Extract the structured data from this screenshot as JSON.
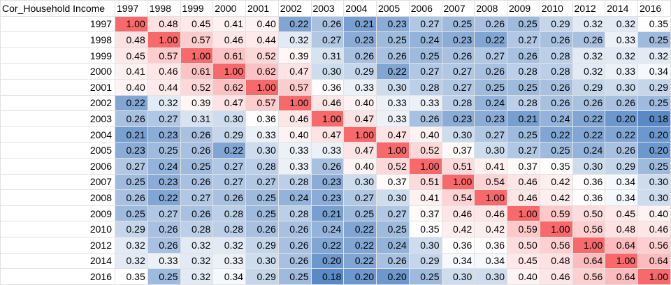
{
  "chart_data": {
    "type": "heatmap",
    "corner_label": "Cor_Household Income",
    "categories": [
      "1997",
      "1998",
      "1999",
      "2000",
      "2001",
      "2002",
      "2003",
      "2004",
      "2005",
      "2006",
      "2007",
      "2008",
      "2009",
      "2010",
      "2012",
      "2014",
      "2016"
    ],
    "values": [
      [
        "1.00",
        "0.48",
        "0.45",
        "0.41",
        "0.40",
        "0.22",
        "0.26",
        "0.21",
        "0.23",
        "0.27",
        "0.25",
        "0.26",
        "0.25",
        "0.29",
        "0.32",
        "0.32",
        "0.35"
      ],
      [
        "0.48",
        "1.00",
        "0.57",
        "0.46",
        "0.44",
        "0.32",
        "0.27",
        "0.23",
        "0.25",
        "0.24",
        "0.23",
        "0.22",
        "0.27",
        "0.26",
        "0.26",
        "0.33",
        "0.25"
      ],
      [
        "0.45",
        "0.57",
        "1.00",
        "0.61",
        "0.52",
        "0.39",
        "0.31",
        "0.26",
        "0.26",
        "0.25",
        "0.26",
        "0.27",
        "0.26",
        "0.28",
        "0.32",
        "0.32",
        "0.32"
      ],
      [
        "0.41",
        "0.46",
        "0.61",
        "1.00",
        "0.62",
        "0.47",
        "0.30",
        "0.29",
        "0.22",
        "0.27",
        "0.27",
        "0.26",
        "0.28",
        "0.28",
        "0.32",
        "0.33",
        "0.34"
      ],
      [
        "0.40",
        "0.44",
        "0.52",
        "0.62",
        "1.00",
        "0.57",
        "0.36",
        "0.33",
        "0.30",
        "0.28",
        "0.27",
        "0.25",
        "0.25",
        "0.26",
        "0.29",
        "0.30",
        "0.29"
      ],
      [
        "0.22",
        "0.32",
        "0.39",
        "0.47",
        "0.57",
        "1.00",
        "0.46",
        "0.40",
        "0.33",
        "0.33",
        "0.28",
        "0.24",
        "0.28",
        "0.26",
        "0.26",
        "0.26",
        "0.25"
      ],
      [
        "0.26",
        "0.27",
        "0.31",
        "0.30",
        "0.36",
        "0.46",
        "1.00",
        "0.47",
        "0.33",
        "0.26",
        "0.23",
        "0.23",
        "0.21",
        "0.24",
        "0.22",
        "0.20",
        "0.18"
      ],
      [
        "0.21",
        "0.23",
        "0.26",
        "0.29",
        "0.33",
        "0.40",
        "0.47",
        "1.00",
        "0.47",
        "0.40",
        "0.30",
        "0.27",
        "0.25",
        "0.22",
        "0.22",
        "0.22",
        "0.20"
      ],
      [
        "0.23",
        "0.25",
        "0.26",
        "0.22",
        "0.30",
        "0.33",
        "0.33",
        "0.47",
        "1.00",
        "0.52",
        "0.37",
        "0.30",
        "0.27",
        "0.25",
        "0.24",
        "0.26",
        "0.20"
      ],
      [
        "0.27",
        "0.24",
        "0.25",
        "0.27",
        "0.28",
        "0.33",
        "0.26",
        "0.40",
        "0.52",
        "1.00",
        "0.51",
        "0.41",
        "0.37",
        "0.35",
        "0.30",
        "0.29",
        "0.25"
      ],
      [
        "0.25",
        "0.23",
        "0.26",
        "0.27",
        "0.27",
        "0.28",
        "0.23",
        "0.30",
        "0.37",
        "0.51",
        "1.00",
        "0.54",
        "0.46",
        "0.42",
        "0.36",
        "0.34",
        "0.30"
      ],
      [
        "0.26",
        "0.22",
        "0.27",
        "0.26",
        "0.25",
        "0.24",
        "0.23",
        "0.27",
        "0.30",
        "0.41",
        "0.54",
        "1.00",
        "0.46",
        "0.42",
        "0.36",
        "0.34",
        "0.30"
      ],
      [
        "0.25",
        "0.27",
        "0.26",
        "0.28",
        "0.25",
        "0.28",
        "0.21",
        "0.25",
        "0.27",
        "0.37",
        "0.46",
        "0.46",
        "1.00",
        "0.59",
        "0.50",
        "0.45",
        "0.40"
      ],
      [
        "0.29",
        "0.26",
        "0.28",
        "0.28",
        "0.26",
        "0.26",
        "0.24",
        "0.22",
        "0.25",
        "0.35",
        "0.42",
        "0.42",
        "0.59",
        "1.00",
        "0.56",
        "0.48",
        "0.46"
      ],
      [
        "0.32",
        "0.26",
        "0.32",
        "0.32",
        "0.29",
        "0.26",
        "0.22",
        "0.22",
        "0.24",
        "0.30",
        "0.36",
        "0.36",
        "0.50",
        "0.56",
        "1.00",
        "0.64",
        "0.56"
      ],
      [
        "0.32",
        "0.33",
        "0.32",
        "0.33",
        "0.30",
        "0.26",
        "0.20",
        "0.22",
        "0.26",
        "0.29",
        "0.34",
        "0.34",
        "0.45",
        "0.48",
        "0.64",
        "1.00",
        "0.64"
      ],
      [
        "0.35",
        "0.25",
        "0.32",
        "0.34",
        "0.29",
        "0.25",
        "0.18",
        "0.20",
        "0.20",
        "0.25",
        "0.30",
        "0.30",
        "0.40",
        "0.46",
        "0.56",
        "0.64",
        "1.00"
      ]
    ],
    "color_scale": {
      "low_color": "#5a8ac6",
      "mid_color": "#ffffff",
      "high_color": "#f8696b",
      "low_value": 0.18,
      "mid_value": 0.35,
      "high_value": 1.0
    },
    "grid": true,
    "legend": "none"
  }
}
